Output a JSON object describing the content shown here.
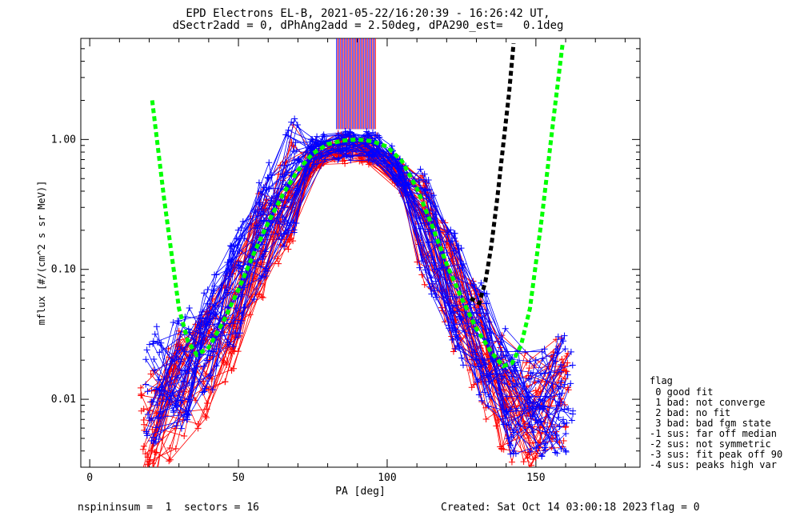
{
  "title_line1": "EPD Electrons EL-B, 2021-05-22/16:20:39 - 16:26:42 UT,",
  "title_line2": "dSectr2add = 0, dPhAng2add = 2.50deg, dPA290_est=   0.1deg",
  "footer_left": "nspininsum =  1  sectors = 16",
  "footer_created": "Created: Sat Oct 14 03:00:18 2023",
  "footer_flag": "flag = 0",
  "legend": {
    "title": "flag",
    "items": [
      " 0 good fit",
      " 1 bad: not converge",
      " 2 bad: no fit",
      " 3 bad: bad fgm state",
      "-1 sus: far off median",
      "-2 sus: not symmetric",
      "-3 sus: fit peak off 90",
      "-4 sus: peaks high var"
    ]
  },
  "chart_data": {
    "type": "line",
    "title": "EPD Electrons EL-B, 2021-05-22/16:20:39 - 16:26:42 UT,",
    "subtitle": "dSectr2add = 0, dPhAng2add = 2.50deg, dPA290_est=   0.1deg",
    "xlabel": "PA [deg]",
    "ylabel": "mflux [#/(cm^2 s sr MeV)]",
    "xlim": [
      -3,
      185
    ],
    "ylim": [
      0.003,
      6.0
    ],
    "yscale": "log",
    "xticks": [
      0,
      50,
      100,
      150
    ],
    "xtick_labels": [
      "0",
      "50",
      "100",
      "150"
    ],
    "yticks": [
      0.01,
      0.1,
      1.0
    ],
    "ytick_labels": [
      "0.01",
      "0.10",
      "1.00"
    ],
    "grid": false,
    "series": [
      {
        "color": "#ff0000",
        "style": "lines with + markers (many spins)",
        "x": [
          22,
          30,
          38,
          45,
          52,
          60,
          68,
          75,
          82,
          90,
          98,
          105,
          112,
          120,
          128,
          135,
          142,
          150,
          158
        ],
        "y": [
          0.006,
          0.012,
          0.018,
          0.03,
          0.08,
          0.2,
          0.45,
          0.75,
          0.85,
          0.87,
          0.82,
          0.5,
          0.22,
          0.08,
          0.035,
          0.015,
          0.009,
          0.008,
          0.012
        ]
      },
      {
        "color": "#0000ff",
        "style": "lines with + markers (many spins)",
        "x": [
          20,
          28,
          36,
          44,
          52,
          60,
          68,
          75,
          82,
          90,
          98,
          105,
          112,
          120,
          128,
          135,
          142,
          150,
          158
        ],
        "y": [
          0.012,
          0.015,
          0.02,
          0.04,
          0.1,
          0.25,
          0.5,
          0.8,
          0.88,
          0.9,
          0.85,
          0.55,
          0.25,
          0.09,
          0.04,
          0.02,
          0.01,
          0.009,
          0.011
        ]
      },
      {
        "color": "#00ff00",
        "style": "dashed fit",
        "x": [
          21,
          25,
          30,
          33,
          36,
          40,
          45,
          50,
          55,
          60,
          65,
          70,
          75,
          80,
          85,
          90,
          95,
          100,
          105,
          110,
          115,
          120,
          125,
          130,
          135,
          139,
          142,
          145,
          148,
          152,
          156,
          159
        ],
        "y": [
          2.0,
          0.35,
          0.05,
          0.028,
          0.022,
          0.025,
          0.04,
          0.07,
          0.13,
          0.23,
          0.38,
          0.58,
          0.78,
          0.92,
          0.98,
          1.0,
          0.97,
          0.88,
          0.68,
          0.42,
          0.22,
          0.11,
          0.06,
          0.035,
          0.023,
          0.018,
          0.019,
          0.026,
          0.05,
          0.25,
          1.5,
          5.5
        ]
      },
      {
        "color": "#000000",
        "style": "dashed fit",
        "x": [
          128,
          131,
          133,
          135,
          137,
          139,
          141,
          142.5
        ],
        "y": [
          0.06,
          0.055,
          0.08,
          0.15,
          0.35,
          0.9,
          2.3,
          5.5
        ]
      }
    ]
  }
}
